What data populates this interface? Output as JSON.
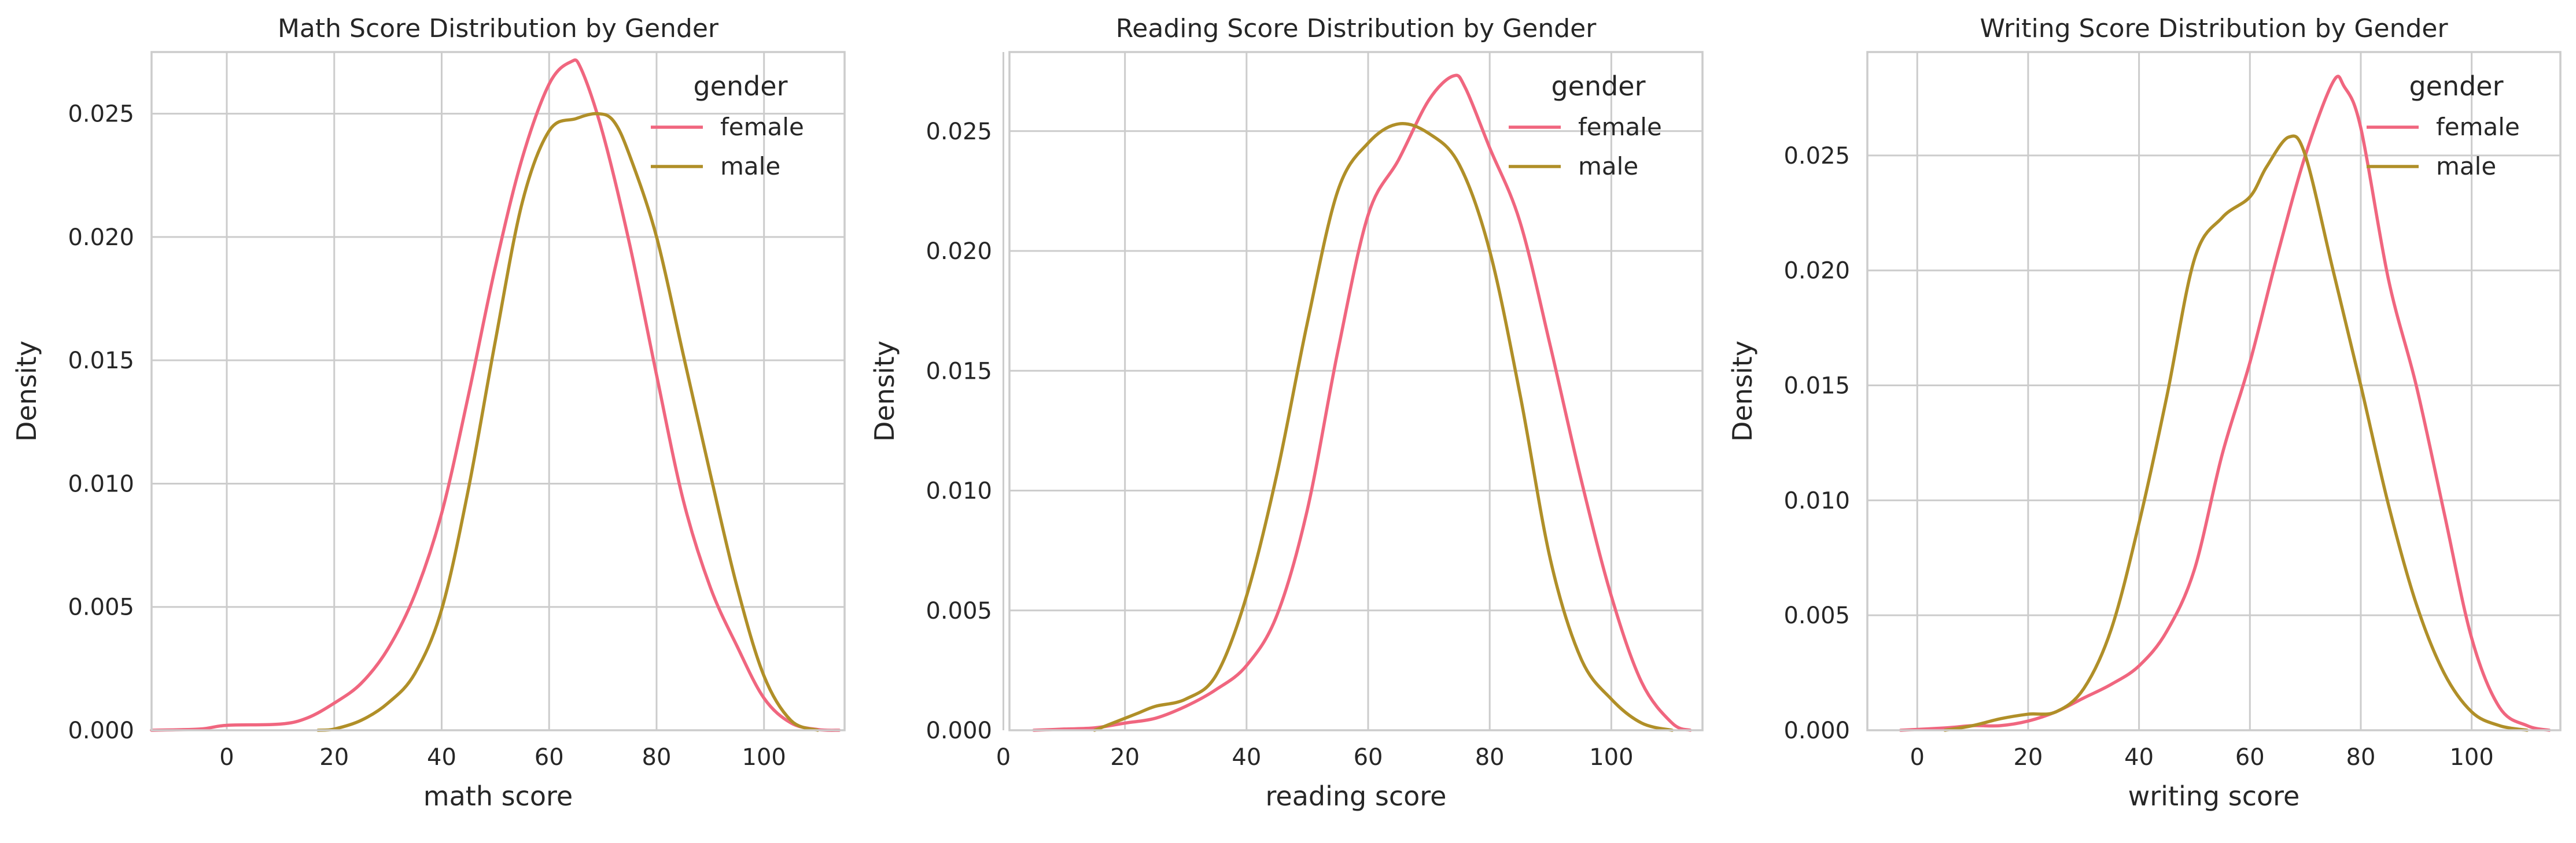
{
  "colors": {
    "female": "#f0667f",
    "male": "#b08f28"
  },
  "chart_data": [
    {
      "type": "line",
      "title": "Math Score Distribution by Gender",
      "xlabel": "math score",
      "ylabel": "Density",
      "xlim": [
        -14,
        115
      ],
      "ylim": [
        0,
        0.0275
      ],
      "xticks": [
        0,
        20,
        40,
        60,
        80,
        100
      ],
      "yticks": [
        0.0,
        0.005,
        0.01,
        0.015,
        0.02,
        0.025
      ],
      "ytick_labels": [
        "0.000",
        "0.005",
        "0.010",
        "0.015",
        "0.020",
        "0.025"
      ],
      "grid": true,
      "legend": {
        "title": "gender",
        "placement": "top-right",
        "entries": [
          "female",
          "male"
        ]
      },
      "series": [
        {
          "name": "female",
          "color": "#f0667f",
          "points": [
            [
              -14,
              0.0
            ],
            [
              -5,
              5e-05
            ],
            [
              0,
              0.0002
            ],
            [
              10,
              0.00025
            ],
            [
              15,
              0.0005
            ],
            [
              20,
              0.0011
            ],
            [
              25,
              0.0019
            ],
            [
              30,
              0.0033
            ],
            [
              35,
              0.0055
            ],
            [
              40,
              0.0088
            ],
            [
              45,
              0.0136
            ],
            [
              50,
              0.0188
            ],
            [
              55,
              0.0232
            ],
            [
              60,
              0.0262
            ],
            [
              64,
              0.0271
            ],
            [
              66,
              0.0268
            ],
            [
              70,
              0.0242
            ],
            [
              75,
              0.0197
            ],
            [
              80,
              0.0144
            ],
            [
              85,
              0.0093
            ],
            [
              90,
              0.0058
            ],
            [
              95,
              0.0034
            ],
            [
              100,
              0.0013
            ],
            [
              105,
              0.0003
            ],
            [
              110,
              3e-05
            ],
            [
              114,
              0.0
            ]
          ]
        },
        {
          "name": "male",
          "color": "#b08f28",
          "points": [
            [
              17,
              0.0
            ],
            [
              20,
              5e-05
            ],
            [
              25,
              0.0004
            ],
            [
              30,
              0.0011
            ],
            [
              35,
              0.0023
            ],
            [
              40,
              0.0049
            ],
            [
              45,
              0.0098
            ],
            [
              50,
              0.0158
            ],
            [
              55,
              0.0214
            ],
            [
              60,
              0.0243
            ],
            [
              65,
              0.0248
            ],
            [
              69,
              0.025
            ],
            [
              72,
              0.0247
            ],
            [
              75,
              0.0233
            ],
            [
              80,
              0.02
            ],
            [
              85,
              0.0152
            ],
            [
              90,
              0.0104
            ],
            [
              95,
              0.0058
            ],
            [
              100,
              0.0022
            ],
            [
              105,
              0.0004
            ],
            [
              110,
              0.0
            ]
          ]
        }
      ]
    },
    {
      "type": "line",
      "title": "Reading Score Distribution by Gender",
      "xlabel": "reading score",
      "ylabel": "Density",
      "xlim": [
        1,
        115
      ],
      "ylim": [
        0,
        0.0283
      ],
      "xticks": [
        0,
        20,
        40,
        60,
        80,
        100
      ],
      "yticks": [
        0.0,
        0.005,
        0.01,
        0.015,
        0.02,
        0.025
      ],
      "ytick_labels": [
        "0.000",
        "0.005",
        "0.010",
        "0.015",
        "0.020",
        "0.025"
      ],
      "grid": true,
      "legend": {
        "title": "gender",
        "placement": "top-right",
        "entries": [
          "female",
          "male"
        ]
      },
      "series": [
        {
          "name": "female",
          "color": "#f0667f",
          "points": [
            [
              5,
              0.0
            ],
            [
              10,
              5e-05
            ],
            [
              15,
              0.0001
            ],
            [
              20,
              0.0003
            ],
            [
              25,
              0.0005
            ],
            [
              30,
              0.001
            ],
            [
              35,
              0.0017
            ],
            [
              40,
              0.0027
            ],
            [
              45,
              0.0048
            ],
            [
              50,
              0.0092
            ],
            [
              55,
              0.0158
            ],
            [
              60,
              0.0215
            ],
            [
              65,
              0.0238
            ],
            [
              70,
              0.0263
            ],
            [
              74,
              0.0273
            ],
            [
              76,
              0.0268
            ],
            [
              80,
              0.0243
            ],
            [
              85,
              0.0212
            ],
            [
              90,
              0.016
            ],
            [
              95,
              0.0105
            ],
            [
              100,
              0.0056
            ],
            [
              105,
              0.002
            ],
            [
              110,
              0.0003
            ],
            [
              113,
              0.0
            ]
          ]
        },
        {
          "name": "male",
          "color": "#b08f28",
          "points": [
            [
              15,
              0.0
            ],
            [
              18,
              0.0003
            ],
            [
              22,
              0.0007
            ],
            [
              25,
              0.001
            ],
            [
              30,
              0.0013
            ],
            [
              35,
              0.0023
            ],
            [
              40,
              0.0056
            ],
            [
              45,
              0.0107
            ],
            [
              50,
              0.017
            ],
            [
              55,
              0.0225
            ],
            [
              60,
              0.0245
            ],
            [
              65,
              0.0253
            ],
            [
              70,
              0.0249
            ],
            [
              75,
              0.0236
            ],
            [
              80,
              0.02
            ],
            [
              85,
              0.014
            ],
            [
              90,
              0.0071
            ],
            [
              95,
              0.003
            ],
            [
              100,
              0.0013
            ],
            [
              105,
              0.0003
            ],
            [
              110,
              0.0
            ]
          ]
        }
      ]
    },
    {
      "type": "line",
      "title": "Writing Score Distribution by Gender",
      "xlabel": "writing score",
      "ylabel": "Density",
      "xlim": [
        -9,
        116
      ],
      "ylim": [
        0,
        0.0295
      ],
      "xticks": [
        0,
        20,
        40,
        60,
        80,
        100
      ],
      "yticks": [
        0.0,
        0.005,
        0.01,
        0.015,
        0.02,
        0.025
      ],
      "ytick_labels": [
        "0.000",
        "0.005",
        "0.010",
        "0.015",
        "0.020",
        "0.025"
      ],
      "grid": true,
      "legend": {
        "title": "gender",
        "placement": "top-right",
        "entries": [
          "female",
          "male"
        ]
      },
      "series": [
        {
          "name": "female",
          "color": "#f0667f",
          "points": [
            [
              -3,
              0.0
            ],
            [
              5,
              0.0001
            ],
            [
              10,
              0.0002
            ],
            [
              15,
              0.0002
            ],
            [
              20,
              0.0004
            ],
            [
              25,
              0.0008
            ],
            [
              30,
              0.0014
            ],
            [
              35,
              0.002
            ],
            [
              40,
              0.0028
            ],
            [
              45,
              0.0043
            ],
            [
              50,
              0.007
            ],
            [
              55,
              0.012
            ],
            [
              60,
              0.016
            ],
            [
              65,
              0.0207
            ],
            [
              70,
              0.025
            ],
            [
              75,
              0.0282
            ],
            [
              77,
              0.028
            ],
            [
              80,
              0.0262
            ],
            [
              85,
              0.0196
            ],
            [
              90,
              0.015
            ],
            [
              95,
              0.0095
            ],
            [
              100,
              0.004
            ],
            [
              105,
              0.001
            ],
            [
              110,
              0.0002
            ],
            [
              114,
              0.0
            ]
          ]
        },
        {
          "name": "male",
          "color": "#b08f28",
          "points": [
            [
              5,
              0.0
            ],
            [
              10,
              0.0002
            ],
            [
              15,
              0.0005
            ],
            [
              20,
              0.0007
            ],
            [
              25,
              0.0008
            ],
            [
              30,
              0.0018
            ],
            [
              35,
              0.0044
            ],
            [
              40,
              0.009
            ],
            [
              45,
              0.0145
            ],
            [
              50,
              0.0205
            ],
            [
              55,
              0.0223
            ],
            [
              60,
              0.0232
            ],
            [
              63,
              0.0245
            ],
            [
              67,
              0.0258
            ],
            [
              70,
              0.025
            ],
            [
              75,
              0.02
            ],
            [
              80,
              0.015
            ],
            [
              85,
              0.0098
            ],
            [
              90,
              0.0055
            ],
            [
              95,
              0.0025
            ],
            [
              100,
              0.0008
            ],
            [
              105,
              0.0002
            ],
            [
              110,
              0.0
            ]
          ]
        }
      ]
    }
  ]
}
